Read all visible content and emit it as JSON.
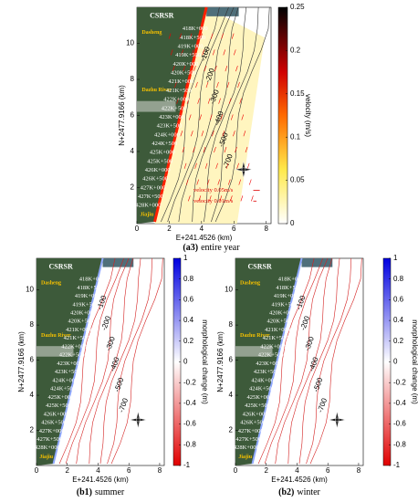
{
  "map_labels": {
    "institute": "CSRSR",
    "north_place": "Dasheng",
    "river": "Dazhu River",
    "south_place": "Jiajiu",
    "stations": [
      "418K+000",
      "418K+500",
      "419K+000",
      "419K+500",
      "420K+000",
      "420K+500",
      "421K+000",
      "421K+500",
      "422K+000",
      "422K+500",
      "423K+000",
      "423K+500",
      "424K+000",
      "424K+500",
      "425K+000",
      "425K+500",
      "426K+000",
      "426K+500",
      "427K+000",
      "427K+500",
      "428K+000"
    ]
  },
  "panels": [
    {
      "caption_tag": "(a3)",
      "caption_text": "entire year",
      "xlabel": "E+241.4526 (km)",
      "ylabel": "N+2477.9166 (km)",
      "xlim": [
        0,
        8.3
      ],
      "ylim": [
        0,
        12
      ],
      "xticks": [
        0,
        2,
        4,
        6,
        8
      ],
      "yticks": [
        2,
        4,
        6,
        8,
        10
      ],
      "colorbar": {
        "label": "velocity (m/s)",
        "lim": [
          0,
          0.25
        ],
        "ticks": [
          0,
          0.05,
          0.1,
          0.15,
          0.2,
          0.25
        ]
      },
      "contour_labels": [
        -100,
        -200,
        -300,
        -400,
        -500,
        -700
      ],
      "legend": [
        "velocity 0.05m/s",
        "velocity 0.01m/s"
      ]
    },
    {
      "caption_tag": "(b1)",
      "caption_text": "summer",
      "xlabel": "E+241.4526 (km)",
      "ylabel": "N+2477.9166 (km)",
      "xlim": [
        0,
        8.3
      ],
      "ylim": [
        0,
        11.8
      ],
      "xticks": [
        0,
        2,
        4,
        6,
        8
      ],
      "yticks": [
        2,
        4,
        6,
        8,
        10
      ],
      "colorbar": {
        "label": "morphological change (m)",
        "lim": [
          -1,
          1
        ],
        "ticks": [
          -1,
          -0.8,
          -0.6,
          -0.4,
          -0.2,
          0,
          0.2,
          0.4,
          0.6,
          0.8,
          1
        ]
      },
      "contour_labels": [
        -100,
        -200,
        -300,
        -400,
        -500,
        -700
      ]
    },
    {
      "caption_tag": "(b2)",
      "caption_text": "winter",
      "xlabel": "E+241.4526 (km)",
      "ylabel": "N+2477.9166 (km)",
      "xlim": [
        0,
        8.3
      ],
      "ylim": [
        0,
        11.8
      ],
      "xticks": [
        0,
        2,
        4,
        6,
        8
      ],
      "yticks": [
        2,
        4,
        6,
        8,
        10
      ],
      "colorbar": {
        "label": "morphological change (m)",
        "lim": [
          -1,
          1
        ],
        "ticks": [
          -1,
          -0.8,
          -0.6,
          -0.4,
          -0.2,
          0,
          0.2,
          0.4,
          0.6,
          0.8,
          1
        ]
      },
      "contour_labels": [
        -100,
        -200,
        -300,
        -400,
        -500,
        -700
      ]
    }
  ]
}
